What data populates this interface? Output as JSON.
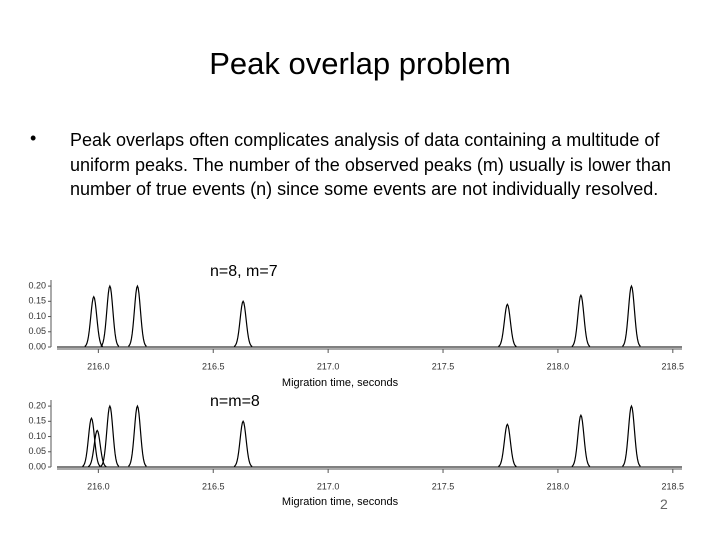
{
  "header": {
    "title": "Peak overlap problem"
  },
  "body": {
    "bullet": "Peak overlaps often complicates analysis of data containing a multitude of uniform peaks. The number of the observed peaks (m) usually is lower than number of true events (n) since some events are not individually resolved."
  },
  "footer": {
    "page_number": "2"
  },
  "chart_data": [
    {
      "type": "peaks",
      "annotation": "n=8, m=7",
      "x_label": "Migration time, seconds",
      "x": [
        215.98,
        216.05,
        216.17,
        216.63,
        217.78,
        218.1,
        218.32
      ],
      "values": [
        0.165,
        0.2,
        0.2,
        0.15,
        0.14,
        0.17,
        0.2
      ],
      "color": "#000000",
      "xlim": [
        215.82,
        218.54
      ],
      "xticks": [
        {
          "value": 216,
          "label": "216.0"
        },
        216.5,
        {
          "value": 217,
          "label": "217.0"
        },
        217.5,
        {
          "value": 218,
          "label": "218.0"
        },
        218.5
      ],
      "ylim": [
        0,
        0.22
      ],
      "yticks": [
        {
          "value": 0,
          "label": "0.00"
        },
        0.05,
        {
          "value": 0.1,
          "label": "0.10"
        },
        0.15,
        {
          "value": 0.2,
          "label": "0.20"
        }
      ]
    },
    {
      "type": "peaks",
      "annotation": "n=m=8",
      "x_label": "Migration time, seconds",
      "x": [
        215.97,
        215.995,
        216.05,
        216.17,
        216.63,
        217.78,
        218.1,
        218.32
      ],
      "values": [
        0.16,
        0.12,
        0.2,
        0.2,
        0.15,
        0.14,
        0.17,
        0.2
      ],
      "color": "#000000",
      "xlim": [
        215.82,
        218.54
      ],
      "xticks": [
        {
          "value": 216,
          "label": "216.0"
        },
        216.5,
        {
          "value": 217,
          "label": "217.0"
        },
        217.5,
        {
          "value": 218,
          "label": "218.0"
        },
        218.5
      ],
      "ylim": [
        0,
        0.22
      ],
      "yticks": [
        {
          "value": 0,
          "label": "0.00"
        },
        0.05,
        {
          "value": 0.1,
          "label": "0.10"
        },
        0.15,
        {
          "value": 0.2,
          "label": "0.20"
        }
      ]
    }
  ]
}
